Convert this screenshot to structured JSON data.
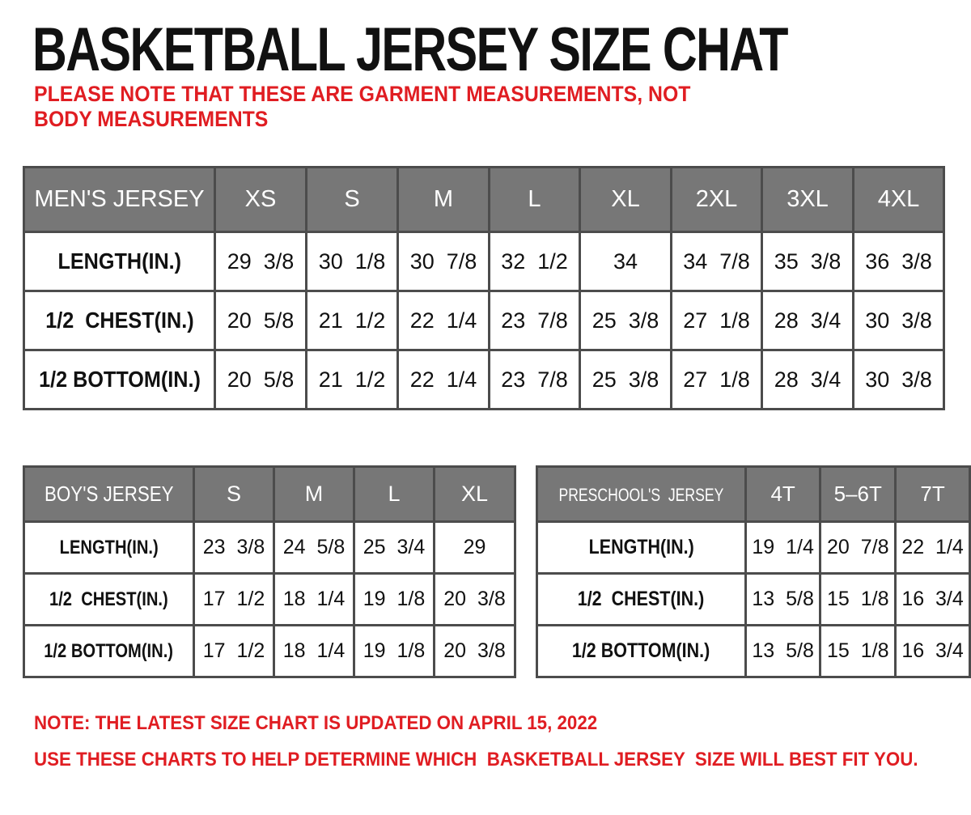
{
  "title": "BASKETBALL JERSEY SIZE CHAT",
  "subtitle": "PLEASE NOTE THAT THESE ARE GARMENT MEASUREMENTS, NOT BODY MEASUREMENTS",
  "colors": {
    "accent_red": "#e01d22",
    "header_bg": "#777777",
    "border": "#4c4c4c",
    "text": "#111111"
  },
  "tables": [
    {
      "id": "mens",
      "name": "MEN'S JERSEY",
      "header": [
        "MEN'S JERSEY",
        "XS",
        "S",
        "M",
        "L",
        "XL",
        "2XL",
        "3XL",
        "4XL"
      ],
      "rows": [
        [
          "LENGTH(IN.)",
          "29  3/8",
          "30  1/8",
          "30  7/8",
          "32  1/2",
          "34",
          "34  7/8",
          "35  3/8",
          "36  3/8"
        ],
        [
          "1/2  CHEST(IN.)",
          "20  5/8",
          "21  1/2",
          "22  1/4",
          "23  7/8",
          "25  3/8",
          "27  1/8",
          "28  3/4",
          "30  3/8"
        ],
        [
          "1/2 BOTTOM(IN.)",
          "20  5/8",
          "21  1/2",
          "22  1/4",
          "23  7/8",
          "25  3/8",
          "27  1/8",
          "28  3/4",
          "30  3/8"
        ]
      ]
    },
    {
      "id": "boys",
      "name": "BOY'S JERSEY",
      "header": [
        "BOY'S JERSEY",
        "S",
        "M",
        "L",
        "XL"
      ],
      "rows": [
        [
          "LENGTH(IN.)",
          "23  3/8",
          "24  5/8",
          "25  3/4",
          "29"
        ],
        [
          "1/2  CHEST(IN.)",
          "17  1/2",
          "18  1/4",
          "19  1/8",
          "20  3/8"
        ],
        [
          "1/2 BOTTOM(IN.)",
          "17  1/2",
          "18  1/4",
          "19  1/8",
          "20  3/8"
        ]
      ]
    },
    {
      "id": "preschool",
      "name": "PRESCHOOL'S JERSEY",
      "header": [
        "PRESCHOOL'S  JERSEY",
        "4T",
        "5–6T",
        "7T"
      ],
      "rows": [
        [
          "LENGTH(IN.)",
          "19  1/4",
          "20  7/8",
          "22  1/4"
        ],
        [
          "1/2  CHEST(IN.)",
          "13  5/8",
          "15  1/8",
          "16  3/4"
        ],
        [
          "1/2 BOTTOM(IN.)",
          "13  5/8",
          "15  1/8",
          "16  3/4"
        ]
      ]
    }
  ],
  "notes": [
    "NOTE: THE LATEST SIZE CHART IS UPDATED ON APRIL 15, 2022",
    "USE THESE CHARTS TO HELP DETERMINE WHICH  BASKETBALL JERSEY  SIZE WILL BEST FIT YOU."
  ]
}
